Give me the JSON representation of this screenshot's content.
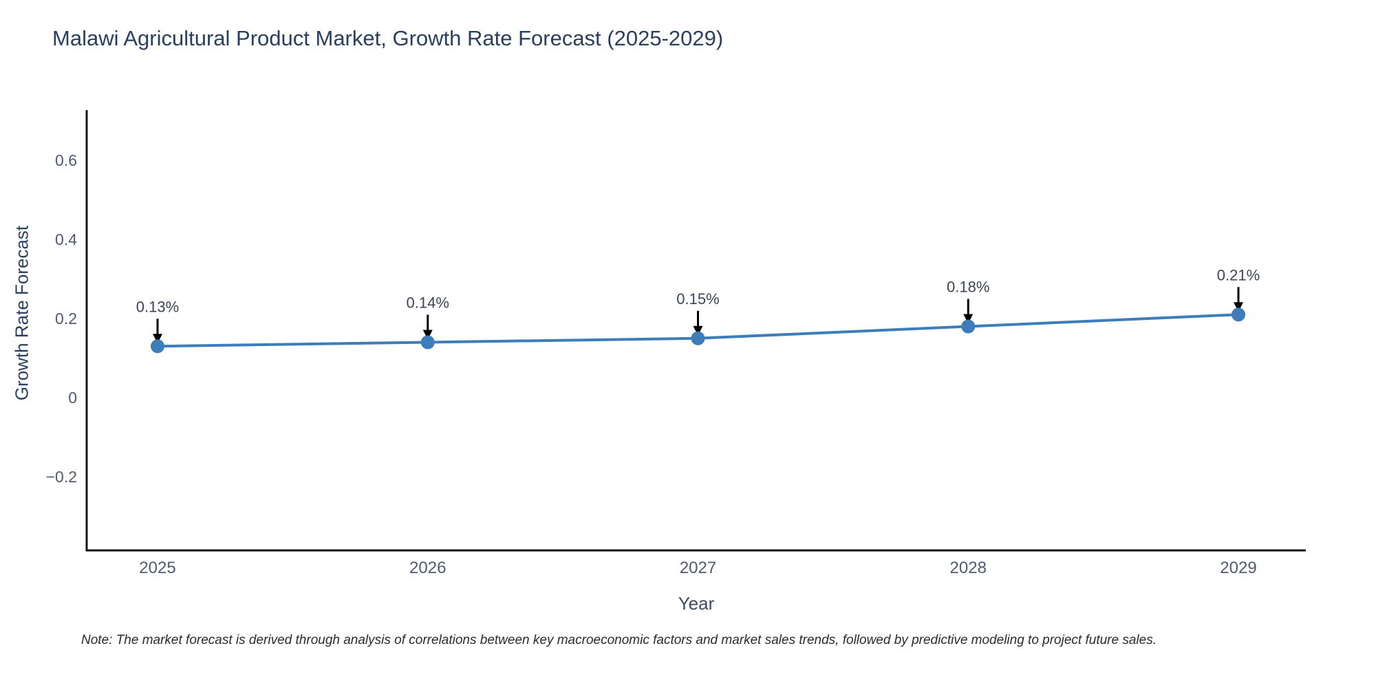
{
  "chart_data": {
    "type": "line",
    "title": "Malawi Agricultural Product Market, Growth Rate Forecast (2025-2029)",
    "xlabel": "Year",
    "ylabel": "Growth Rate Forecast",
    "x": [
      2025,
      2026,
      2027,
      2028,
      2029
    ],
    "series": [
      {
        "name": "Growth Rate Forecast",
        "values": [
          0.13,
          0.14,
          0.15,
          0.18,
          0.21
        ]
      }
    ],
    "point_labels": [
      "0.13%",
      "0.14%",
      "0.15%",
      "0.18%",
      "0.21%"
    ],
    "yticks": [
      0.6,
      0.4,
      0.2,
      0,
      -0.2
    ],
    "ylim": [
      -0.39,
      0.73
    ],
    "grid": false,
    "legend_position": "none",
    "annotation_style": "black-down-arrows-above-points",
    "colors": {
      "line": "#3c7dba",
      "marker": "#3c7dba",
      "axis": "#141414",
      "arrow": "#000000",
      "tick_label": "#4e5b70",
      "heading": "#2a3f5f"
    }
  },
  "footnote": "Note: The market forecast is derived through analysis of correlations between key macroeconomic factors and market sales trends, followed by predictive modeling to project future sales."
}
